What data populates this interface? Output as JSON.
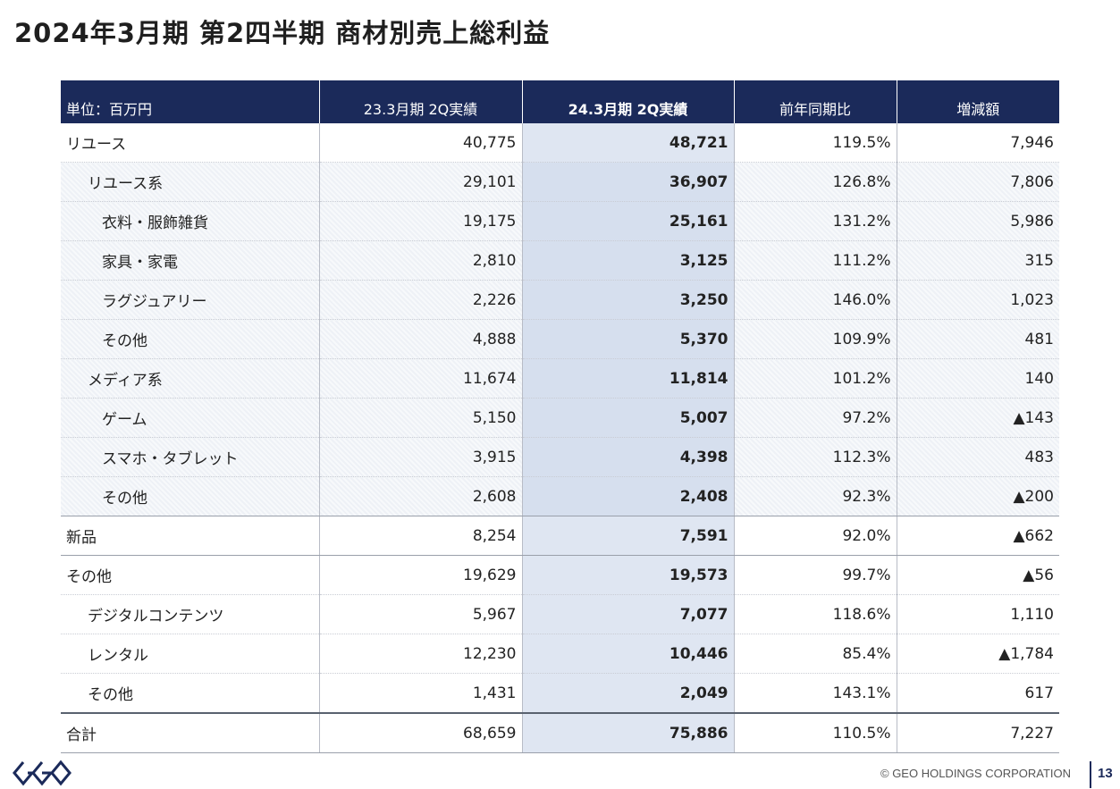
{
  "title": "2024年3月期 第2四半期 商材別売上総利益",
  "header": {
    "unit": "単位：百万円",
    "prev": "23.3月期 2Q実績",
    "current": "24.3月期 2Q実績",
    "yoy": "前年同期比",
    "diff": "増減額"
  },
  "rows": [
    {
      "label": "リユース",
      "prev": "40,775",
      "current": "48,721",
      "yoy": "119.5%",
      "diff": "7,946"
    },
    {
      "label": "リユース系",
      "prev": "29,101",
      "current": "36,907",
      "yoy": "126.8%",
      "diff": "7,806"
    },
    {
      "label": "衣料・服飾雑貨",
      "prev": "19,175",
      "current": "25,161",
      "yoy": "131.2%",
      "diff": "5,986"
    },
    {
      "label": "家具・家電",
      "prev": "2,810",
      "current": "3,125",
      "yoy": "111.2%",
      "diff": "315"
    },
    {
      "label": "ラグジュアリー",
      "prev": "2,226",
      "current": "3,250",
      "yoy": "146.0%",
      "diff": "1,023"
    },
    {
      "label": "その他",
      "prev": "4,888",
      "current": "5,370",
      "yoy": "109.9%",
      "diff": "481"
    },
    {
      "label": "メディア系",
      "prev": "11,674",
      "current": "11,814",
      "yoy": "101.2%",
      "diff": "140"
    },
    {
      "label": "ゲーム",
      "prev": "5,150",
      "current": "5,007",
      "yoy": "97.2%",
      "diff": "▲143"
    },
    {
      "label": "スマホ・タブレット",
      "prev": "3,915",
      "current": "4,398",
      "yoy": "112.3%",
      "diff": "483"
    },
    {
      "label": "その他",
      "prev": "2,608",
      "current": "2,408",
      "yoy": "92.3%",
      "diff": "▲200"
    },
    {
      "label": "新品",
      "prev": "8,254",
      "current": "7,591",
      "yoy": "92.0%",
      "diff": "▲662"
    },
    {
      "label": "その他",
      "prev": "19,629",
      "current": "19,573",
      "yoy": "99.7%",
      "diff": "▲56"
    },
    {
      "label": "デジタルコンテンツ",
      "prev": "5,967",
      "current": "7,077",
      "yoy": "118.6%",
      "diff": "1,110"
    },
    {
      "label": "レンタル",
      "prev": "12,230",
      "current": "10,446",
      "yoy": "85.4%",
      "diff": "▲1,784"
    },
    {
      "label": "その他",
      "prev": "1,431",
      "current": "2,049",
      "yoy": "143.1%",
      "diff": "617"
    },
    {
      "label": "合計",
      "prev": "68,659",
      "current": "75,886",
      "yoy": "110.5%",
      "diff": "7,227"
    }
  ],
  "footer": {
    "copyright": "© GEO HOLDINGS CORPORATION",
    "page": "13",
    "logo": "geo-logo",
    "logo_color": "#1b2a5a"
  },
  "colors": {
    "header_bg": "#1b2a5a",
    "current_col_bg": "#dfe6f2"
  }
}
